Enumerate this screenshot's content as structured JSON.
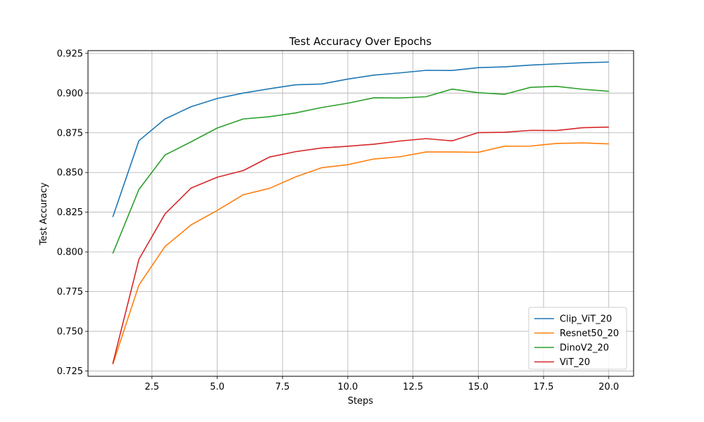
{
  "chart_data": {
    "type": "line",
    "title": "Test Accuracy Over Epochs",
    "xlabel": "Steps",
    "ylabel": "Test Accuracy",
    "xlim": [
      0.05,
      20.95
    ],
    "ylim": [
      0.7217,
      0.9267
    ],
    "xticks": [
      2.5,
      5.0,
      7.5,
      10.0,
      12.5,
      15.0,
      17.5,
      20.0
    ],
    "xtick_labels": [
      "2.5",
      "5.0",
      "7.5",
      "10.0",
      "12.5",
      "15.0",
      "17.5",
      "20.0"
    ],
    "yticks": [
      0.725,
      0.75,
      0.775,
      0.8,
      0.825,
      0.85,
      0.875,
      0.9,
      0.925
    ],
    "ytick_labels": [
      "0.725",
      "0.750",
      "0.775",
      "0.800",
      "0.825",
      "0.850",
      "0.875",
      "0.900",
      "0.925"
    ],
    "grid": true,
    "legend_position": "lower-right",
    "x": [
      1,
      2,
      3,
      4,
      5,
      6,
      7,
      8,
      9,
      10,
      11,
      12,
      13,
      14,
      15,
      16,
      17,
      18,
      19,
      20
    ],
    "series": [
      {
        "name": "Clip_ViT_20",
        "color": "#1f77b4",
        "values": [
          0.822,
          0.87,
          0.8837,
          0.8914,
          0.8966,
          0.9,
          0.9027,
          0.9052,
          0.9057,
          0.9088,
          0.9113,
          0.9127,
          0.9143,
          0.9142,
          0.916,
          0.9165,
          0.9176,
          0.9184,
          0.9191,
          0.9195
        ]
      },
      {
        "name": "Resnet50_20",
        "color": "#ff7f0e",
        "values": [
          0.7292,
          0.7791,
          0.8034,
          0.817,
          0.8261,
          0.836,
          0.84,
          0.8472,
          0.853,
          0.8549,
          0.8585,
          0.8599,
          0.8629,
          0.8629,
          0.8627,
          0.8665,
          0.8666,
          0.8683,
          0.8686,
          0.868
        ]
      },
      {
        "name": "DinoV2_20",
        "color": "#2ca02c",
        "values": [
          0.799,
          0.8393,
          0.861,
          0.8693,
          0.878,
          0.8837,
          0.8851,
          0.8875,
          0.8909,
          0.8936,
          0.897,
          0.8969,
          0.8977,
          0.9025,
          0.9002,
          0.8992,
          0.9036,
          0.9042,
          0.9024,
          0.9011
        ]
      },
      {
        "name": "ViT_20",
        "color": "#d62728",
        "values": [
          0.7297,
          0.7953,
          0.8239,
          0.8402,
          0.847,
          0.8512,
          0.8597,
          0.8631,
          0.8654,
          0.8665,
          0.8678,
          0.8698,
          0.8713,
          0.8699,
          0.8751,
          0.8753,
          0.8765,
          0.8764,
          0.8782,
          0.8786
        ]
      }
    ]
  }
}
